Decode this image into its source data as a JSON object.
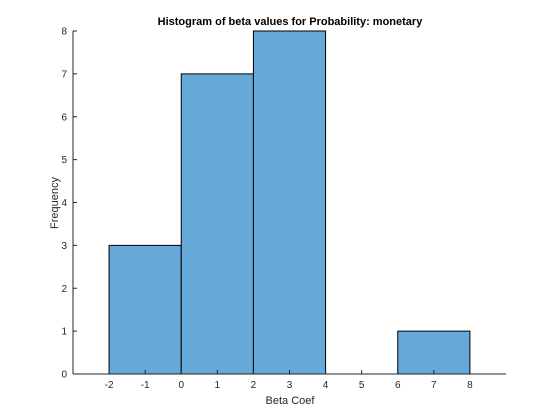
{
  "chart_data": {
    "type": "bar",
    "subtype": "histogram",
    "title": "Histogram of beta values for Probability: monetary",
    "xlabel": "Beta Coef",
    "ylabel": "Frequency",
    "bins": [
      {
        "start": -2,
        "end": 0,
        "count": 3
      },
      {
        "start": 0,
        "end": 2,
        "count": 7
      },
      {
        "start": 2,
        "end": 4,
        "count": 8
      },
      {
        "start": 4,
        "end": 6,
        "count": 0
      },
      {
        "start": 6,
        "end": 8,
        "count": 1
      }
    ],
    "xlim": [
      -3,
      9
    ],
    "ylim": [
      0,
      8
    ],
    "xticks": [
      "-2",
      "-1",
      "0",
      "1",
      "2",
      "3",
      "4",
      "5",
      "6",
      "7",
      "8"
    ],
    "yticks": [
      "0",
      "1",
      "2",
      "3",
      "4",
      "5",
      "6",
      "7",
      "8"
    ],
    "bar_color": "#67a9d8",
    "edge_color": "#000000",
    "grid": false
  }
}
